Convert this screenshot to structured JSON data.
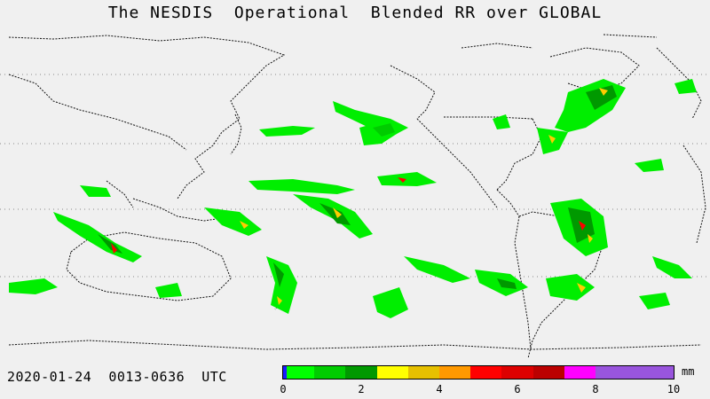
{
  "title": "The NESDIS  Operational  Blended RR over GLOBAL",
  "date_range": "2020-01-24  0013-0636  UTC",
  "colorbar": {
    "unit": "mm",
    "min": 0,
    "max": 10,
    "ticks": [
      "0",
      "2",
      "4",
      "6",
      "8",
      "10"
    ],
    "colors": [
      "#1a1aff",
      "#00ff00",
      "#00cc00",
      "#009900",
      "#ffff00",
      "#e6c000",
      "#ff9900",
      "#ff0000",
      "#dd0000",
      "#bb0000",
      "#ff00ff",
      "#9955dd"
    ],
    "bin_edges": [
      0,
      0.1,
      0.8,
      1.6,
      2.4,
      3.2,
      4.0,
      4.8,
      5.6,
      6.4,
      7.2,
      8.0,
      10
    ]
  },
  "map": {
    "projection": "equirectangular",
    "coastline_color": "#000000",
    "gridline_color": "#888888",
    "gridlines": "dotted latitude lines"
  }
}
